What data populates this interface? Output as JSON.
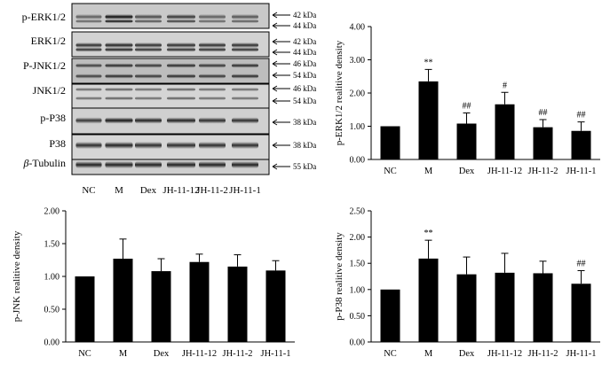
{
  "blot": {
    "rows": [
      {
        "label": "p-ERK1/2",
        "markers": [
          "42 kDa",
          "44 kDa"
        ]
      },
      {
        "label": "ERK1/2",
        "markers": [
          "42 kDa",
          "44 kDa"
        ]
      },
      {
        "label": "P-JNK1/2",
        "markers": [
          "46 kDa",
          "54 kDa"
        ]
      },
      {
        "label": "JNK1/2",
        "markers": [
          "46 kDa",
          "54 kDa"
        ]
      },
      {
        "label": "p-P38",
        "markers": [
          "38 kDa"
        ]
      },
      {
        "label": "P38",
        "markers": [
          "38 kDa"
        ]
      },
      {
        "label_greek": "β",
        "label_rest": "-Tubulin",
        "markers": [
          "55 kDa"
        ]
      }
    ],
    "lanes": [
      "NC",
      "M",
      "Dex",
      "JH-11-12",
      "JH-11-2",
      "JH-11-1"
    ]
  },
  "chart_data": [
    {
      "type": "bar",
      "title": "",
      "xlabel": "",
      "ylabel": "p-ERK1/2 realitive density",
      "categories": [
        "NC",
        "M",
        "Dex",
        "JH-11-12",
        "JH-11-2",
        "JH-11-1"
      ],
      "values": [
        1.0,
        2.35,
        1.08,
        1.66,
        0.97,
        0.86
      ],
      "errors": [
        0.0,
        0.36,
        0.32,
        0.36,
        0.23,
        0.27
      ],
      "annotations": [
        "",
        "**",
        "##",
        "#",
        "##",
        "##"
      ],
      "ylim": [
        0,
        4
      ],
      "yticks": [
        "0.00",
        "1.00",
        "2.00",
        "3.00",
        "4.00"
      ]
    },
    {
      "type": "bar",
      "title": "",
      "xlabel": "",
      "ylabel": "p-JNK realitive density",
      "categories": [
        "NC",
        "M",
        "Dex",
        "JH-11-12",
        "JH-11-2",
        "JH-11-1"
      ],
      "values": [
        1.0,
        1.27,
        1.08,
        1.22,
        1.15,
        1.09
      ],
      "errors": [
        0.0,
        0.3,
        0.19,
        0.12,
        0.18,
        0.15
      ],
      "annotations": [
        "",
        "",
        "",
        "",
        "",
        ""
      ],
      "ylim": [
        0,
        2
      ],
      "yticks": [
        "0.00",
        "0.50",
        "1.00",
        "1.50",
        "2.00"
      ]
    },
    {
      "type": "bar",
      "title": "",
      "xlabel": "",
      "ylabel": "p-P38 realitive density",
      "categories": [
        "NC",
        "M",
        "Dex",
        "JH-11-12",
        "JH-11-2",
        "JH-11-1"
      ],
      "values": [
        1.0,
        1.59,
        1.29,
        1.32,
        1.31,
        1.11
      ],
      "errors": [
        0.0,
        0.35,
        0.33,
        0.37,
        0.23,
        0.25
      ],
      "annotations": [
        "",
        "**",
        "",
        "",
        "",
        "##"
      ],
      "ylim": [
        0,
        2.5
      ],
      "yticks": [
        "0.00",
        "0.50",
        "1.00",
        "1.50",
        "2.00",
        "2.50"
      ]
    }
  ]
}
